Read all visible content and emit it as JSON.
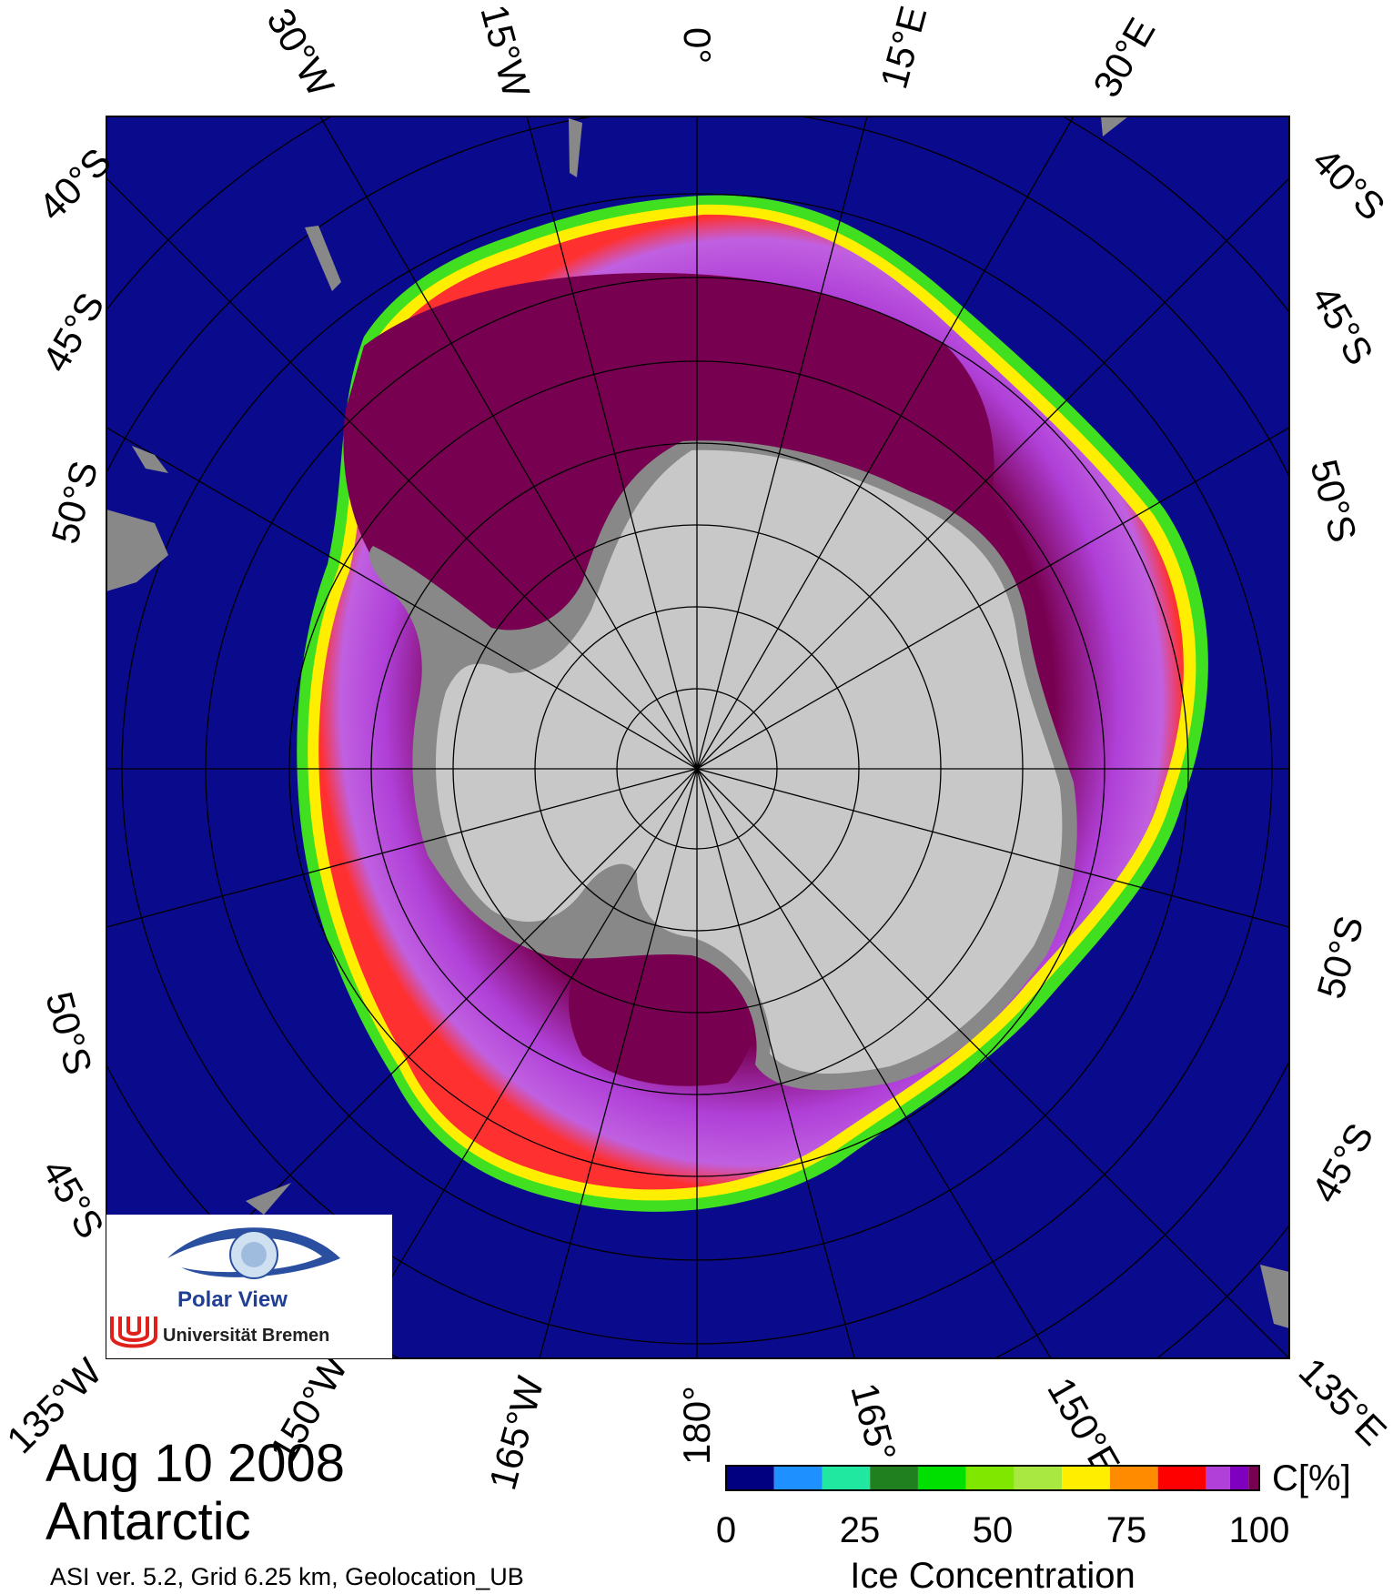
{
  "map": {
    "date": "Aug 10 2008",
    "region": "Antarctic",
    "meta": "ASI ver. 5.2,  Grid 6.25 km, Geolocation_UB",
    "colors": {
      "ocean": "#0a0a8c",
      "land_gray": "#888888",
      "ice_shelf": "#c8c8c8",
      "ice_full": "#780050",
      "ice_high": "#b040d8",
      "edge_red": "#ff2020",
      "edge_yellow": "#ffee00",
      "edge_green": "#40e020"
    },
    "top_labels": [
      "30°W",
      "15°W",
      "0°",
      "15°E",
      "30°E"
    ],
    "bottom_labels": [
      "135°W",
      "150°W",
      "165°W",
      "180°",
      "165°",
      "150°E",
      "135°E"
    ],
    "left_labels": [
      "40°S",
      "45°S",
      "50°S",
      "50°S",
      "45°S"
    ],
    "right_labels": [
      "40°S",
      "45°S",
      "50°S",
      "50°S",
      "45°S"
    ]
  },
  "logo": {
    "line1": "Polar View",
    "line2": "Universität Bremen"
  },
  "colorbar": {
    "title": "Ice Concentration",
    "unit": "C[%]",
    "ticks": [
      "0",
      "25",
      "50",
      "75",
      "100"
    ],
    "colors": [
      "#000080",
      "#1e90ff",
      "#20e8a0",
      "#208020",
      "#00e000",
      "#80e800",
      "#a8e840",
      "#ffee00",
      "#ff8c00",
      "#ff0000",
      "#b040d8",
      "#8000c0",
      "#780050"
    ]
  }
}
